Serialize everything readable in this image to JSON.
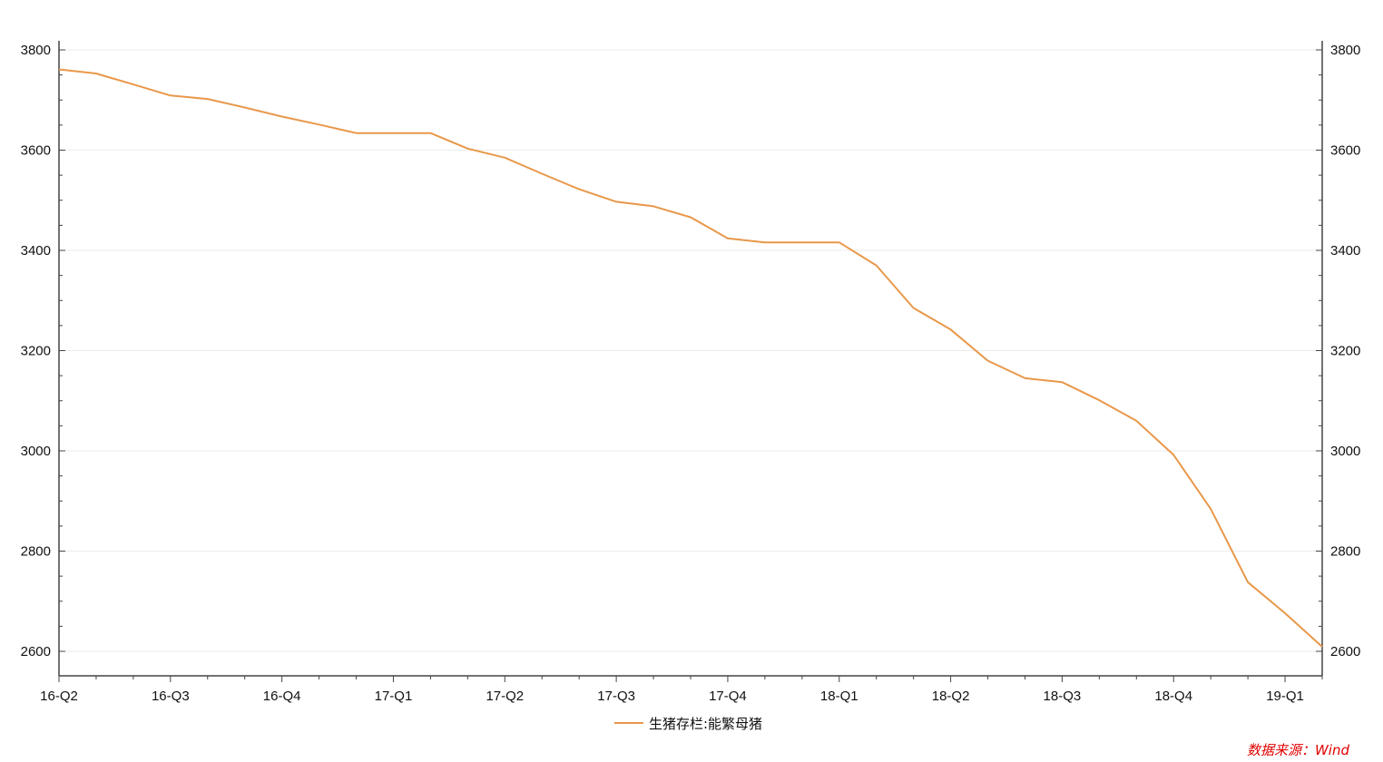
{
  "chart_data": {
    "type": "line",
    "title": "",
    "xlabel": "",
    "ylabel": "",
    "x": [
      "16-Q2",
      "16-05",
      "16-06",
      "16-Q3",
      "16-08",
      "16-09",
      "16-Q4",
      "16-11",
      "16-12",
      "17-Q1",
      "17-02",
      "17-03",
      "17-Q2",
      "17-05",
      "17-06",
      "17-Q3",
      "17-08",
      "17-09",
      "17-Q4",
      "17-11",
      "17-12",
      "18-Q1",
      "18-02",
      "18-03",
      "18-Q2",
      "18-05",
      "18-06",
      "18-Q3",
      "18-08",
      "18-09",
      "18-Q4",
      "18-11",
      "18-12",
      "19-Q1",
      "19-02"
    ],
    "tick_labels": [
      "16-Q2",
      "16-Q3",
      "16-Q4",
      "17-Q1",
      "17-Q2",
      "17-Q3",
      "17-Q4",
      "18-Q1",
      "18-Q2",
      "18-Q3",
      "18-Q4",
      "19-Q1"
    ],
    "series": [
      {
        "name": "生猪存栏:能繁母猪",
        "color": "#E8984A",
        "values": [
          3761,
          3753,
          3731,
          3709,
          3702,
          3685,
          3667,
          3651,
          3634,
          3634,
          3634,
          3603,
          3585,
          3553,
          3522,
          3497,
          3488,
          3466,
          3424,
          3416,
          3416,
          3416,
          3370,
          3285,
          3242,
          3180,
          3145,
          3137,
          3101,
          3060,
          2992,
          2884,
          2738,
          2676,
          2609
        ]
      }
    ],
    "ylim": [
      2600,
      3800
    ],
    "y_ticks": [
      2600,
      2800,
      3000,
      3200,
      3400,
      3600,
      3800
    ],
    "dual_y_axis": true,
    "grid": true,
    "legend_position": "bottom-center"
  },
  "source_note": "数据来源：Wind"
}
